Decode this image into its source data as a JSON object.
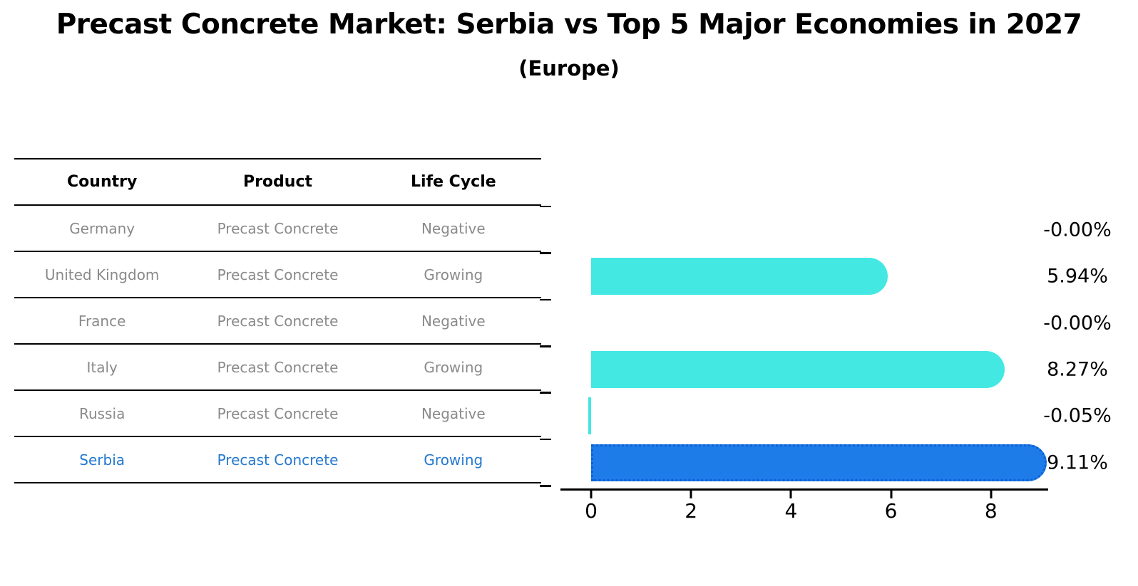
{
  "title": "Precast Concrete Market: Serbia vs Top 5 Major Economies in 2027",
  "subtitle": "(Europe)",
  "table": {
    "headers": [
      "Country",
      "Product",
      "Life Cycle"
    ],
    "rows": [
      {
        "country": "Germany",
        "product": "Precast Concrete",
        "life_cycle": "Negative",
        "highlight": false
      },
      {
        "country": "United Kingdom",
        "product": "Precast Concrete",
        "life_cycle": "Growing",
        "highlight": false
      },
      {
        "country": "France",
        "product": "Precast Concrete",
        "life_cycle": "Negative",
        "highlight": false
      },
      {
        "country": "Italy",
        "product": "Precast Concrete",
        "life_cycle": "Growing",
        "highlight": false
      },
      {
        "country": "Russia",
        "product": "Precast Concrete",
        "life_cycle": "Negative",
        "highlight": false
      },
      {
        "country": "Serbia",
        "product": "Precast Concrete",
        "life_cycle": "Growing",
        "highlight": true
      }
    ]
  },
  "chart_data": {
    "type": "bar",
    "orientation": "horizontal",
    "categories": [
      "Germany",
      "United Kingdom",
      "France",
      "Italy",
      "Russia",
      "Serbia"
    ],
    "values": [
      -0.0,
      5.94,
      -0.0,
      8.27,
      -0.05,
      9.11
    ],
    "value_labels": [
      "-0.00%",
      "5.94%",
      "-0.00%",
      "8.27%",
      "-0.05%",
      "9.11%"
    ],
    "xticks": [
      0,
      2,
      4,
      6,
      8
    ],
    "xlim": [
      -0.62,
      9.15
    ],
    "xlabel": "",
    "ylabel": "",
    "grid": false,
    "legend": "none",
    "bar_color": "#43e8e3",
    "highlight_color": "#1e7ce8",
    "highlight_index": 5,
    "highlight_text_color": "#2478cf"
  }
}
